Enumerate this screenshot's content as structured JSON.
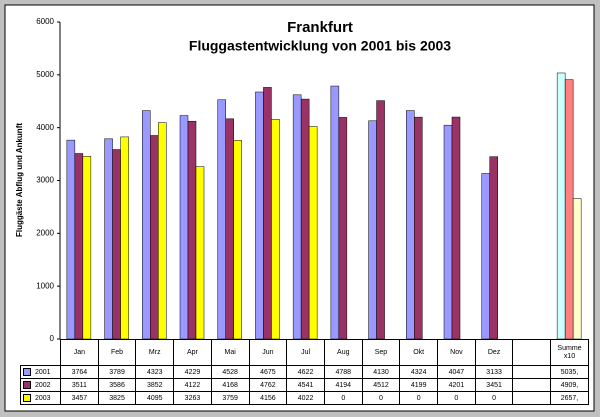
{
  "chart_data": {
    "type": "bar",
    "title": "Frankfurt",
    "subtitle": "Fluggastentwicklung von 2001 bis 2003",
    "y_label": "Fluggäste Abflug und Ankunft",
    "categories": [
      "Jan",
      "Feb",
      "Mrz",
      "Apr",
      "Mai",
      "Jun",
      "Jul",
      "Aug",
      "Sep",
      "Okt",
      "Nov",
      "Dez",
      null,
      "Summe x10"
    ],
    "series": [
      {
        "name": "2001",
        "color": "#9999ff",
        "last_category_color": "#ccffff",
        "values": [
          3764,
          3789,
          4323,
          4229,
          4528,
          4675,
          4622,
          4788,
          4130,
          4324,
          4047,
          3133,
          null,
          5035
        ],
        "value_labels": [
          "3764",
          "3789",
          "4323",
          "4229",
          "4528",
          "4675",
          "4622",
          "4788",
          "4130",
          "4324",
          "4047",
          "3133",
          null,
          "5035,"
        ]
      },
      {
        "name": "2002",
        "color": "#993366",
        "last_category_color": "#ff8080",
        "values": [
          3511,
          3586,
          3852,
          4122,
          4168,
          4762,
          4541,
          4194,
          4512,
          4199,
          4201,
          3451,
          null,
          4909
        ],
        "value_labels": [
          "3511",
          "3586",
          "3852",
          "4122",
          "4168",
          "4762",
          "4541",
          "4194",
          "4512",
          "4199",
          "4201",
          "3451",
          null,
          "4909,"
        ]
      },
      {
        "name": "2003",
        "color": "#ffff00",
        "last_category_color": "#ffffcc",
        "values": [
          3457,
          3825,
          4095,
          3263,
          3759,
          4156,
          4022,
          0,
          0,
          0,
          0,
          0,
          null,
          2657
        ],
        "value_labels": [
          "3457",
          "3825",
          "4095",
          "3263",
          "3759",
          "4156",
          "4022",
          "0",
          "0",
          "0",
          "0",
          "0",
          null,
          "2657,"
        ]
      }
    ],
    "ylim": [
      0,
      6000
    ],
    "yticks": [
      0,
      1000,
      2000,
      3000,
      4000,
      5000,
      6000
    ],
    "grid": false
  }
}
